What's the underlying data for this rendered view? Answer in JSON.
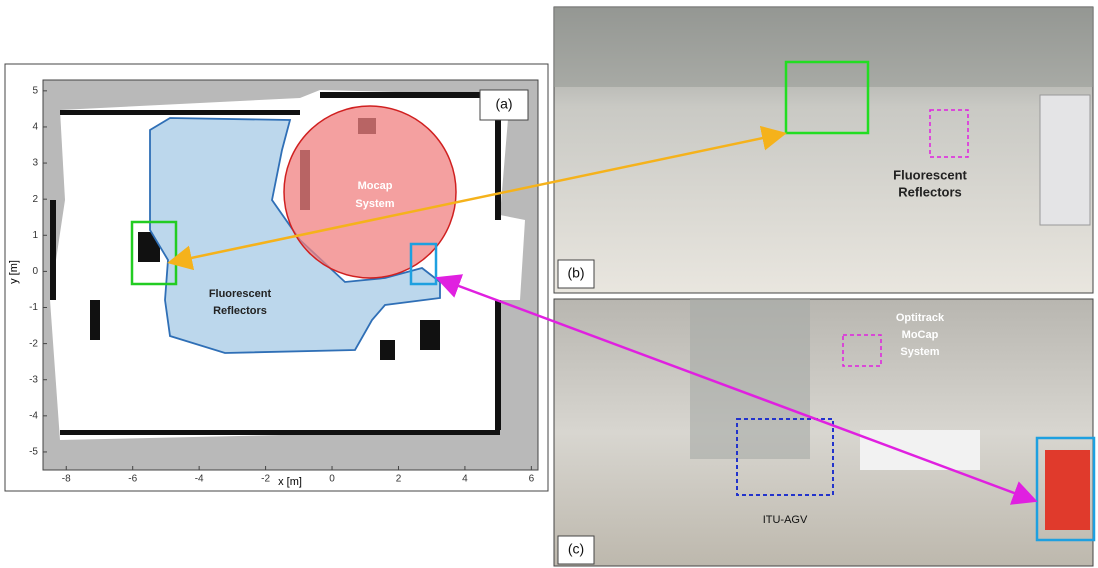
{
  "chart_data": {
    "type": "map",
    "panel_label": "(a)",
    "xlabel": "x [m]",
    "ylabel": "y [m]",
    "xlim": [
      -8.7,
      6.2
    ],
    "ylim": [
      -5.5,
      5.3
    ],
    "xticks": [
      -8,
      -6,
      -4,
      -2,
      0,
      2,
      4,
      6
    ],
    "yticks": [
      -5,
      -4,
      -3,
      -2,
      -1,
      0,
      1,
      2,
      3,
      4,
      5
    ],
    "annotations": [
      {
        "lines": [
          "Mocap",
          "System"
        ]
      },
      {
        "lines": [
          "Fluorescent",
          "Reflectors"
        ]
      }
    ]
  },
  "photos": [
    {
      "panel_label": "(b)",
      "annotations": [
        {
          "lines": [
            "Fluorescent",
            "Reflectors"
          ]
        }
      ]
    },
    {
      "panel_label": "(c)",
      "annotations": [
        {
          "lines": [
            "Optitrack",
            "MoCap",
            "System"
          ]
        },
        {
          "lines": [
            "ITU-AGV"
          ]
        }
      ]
    }
  ]
}
